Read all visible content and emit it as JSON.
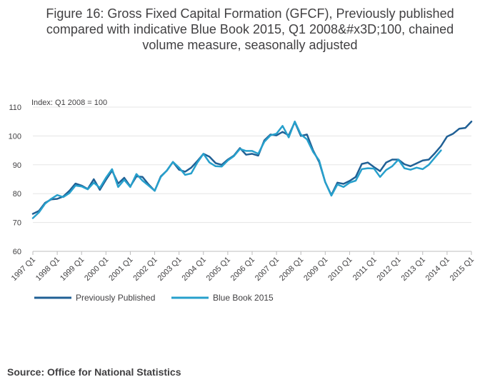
{
  "chart_data": {
    "type": "line",
    "title": "Figure 16: Gross Fixed Capital Formation (GFCF), Previously published\ncompared with indicative Blue Book 2015, Q1 2008&#x3D;100, chained\nvolume measure, seasonally adjusted",
    "ylabel": "Index: Q1 2008 = 100",
    "xlabel": "",
    "ylim": [
      60,
      110
    ],
    "yticks": [
      60,
      70,
      80,
      90,
      100,
      110
    ],
    "x_start": "1997 Q1",
    "x_tick_labels": [
      "1997 Q1",
      "1998 Q1",
      "1999 Q1",
      "2000 Q1",
      "2001 Q1",
      "2002 Q1",
      "2003 Q1",
      "2004 Q1",
      "2005 Q1",
      "2006 Q1",
      "2007 Q1",
      "2008 Q1",
      "2009 Q1",
      "2010 Q1",
      "2011 Q1",
      "2012 Q1",
      "2013 Q1",
      "2014 Q1",
      "2015 Q1"
    ],
    "grid": "horizontal",
    "legend_position": "bottom-left",
    "series": [
      {
        "name": "Previously Published",
        "color": "#206095",
        "values": [
          73.0,
          74.0,
          76.8,
          78.0,
          78.2,
          79.0,
          81.0,
          83.5,
          82.8,
          81.6,
          85.0,
          81.3,
          84.8,
          88.0,
          83.5,
          85.5,
          82.5,
          86.0,
          85.8,
          83.2,
          81.0,
          86.0,
          88.0,
          91.0,
          88.3,
          87.6,
          89.0,
          91.3,
          93.8,
          92.8,
          90.6,
          90.0,
          91.8,
          93.2,
          95.8,
          93.5,
          93.8,
          93.2,
          98.5,
          100.5,
          100.2,
          101.4,
          100.2,
          104.8,
          100.0,
          100.5,
          95.0,
          91.0,
          84.0,
          79.5,
          83.8,
          83.4,
          84.4,
          85.8,
          90.3,
          90.8,
          89.2,
          87.8,
          90.8,
          91.8,
          91.8,
          90.2,
          89.5,
          90.5,
          91.5,
          91.8,
          94.0,
          96.5,
          99.8,
          100.8,
          102.5,
          102.8,
          105.0
        ]
      },
      {
        "name": "Blue Book 2015",
        "color": "#27a0cc",
        "values": [
          71.5,
          73.5,
          76.5,
          78.2,
          79.5,
          78.8,
          80.2,
          82.8,
          82.5,
          81.5,
          83.8,
          82.0,
          85.5,
          88.5,
          82.3,
          84.8,
          82.3,
          86.8,
          84.5,
          82.8,
          81.0,
          85.8,
          88.0,
          91.0,
          89.0,
          86.5,
          87.0,
          90.8,
          93.8,
          90.8,
          89.5,
          89.4,
          91.5,
          93.0,
          95.5,
          94.8,
          94.8,
          93.8,
          98.0,
          100.2,
          100.8,
          103.5,
          99.5,
          105.0,
          100.5,
          98.8,
          94.5,
          91.5,
          84.0,
          79.3,
          83.2,
          82.3,
          83.8,
          84.5,
          88.5,
          88.8,
          88.7,
          85.8,
          88.2,
          89.5,
          91.8,
          88.8,
          88.3,
          89.0,
          88.5,
          90.0,
          92.5,
          95.0
        ]
      }
    ]
  },
  "footer": {
    "source": "Source: Office for National Statistics"
  }
}
